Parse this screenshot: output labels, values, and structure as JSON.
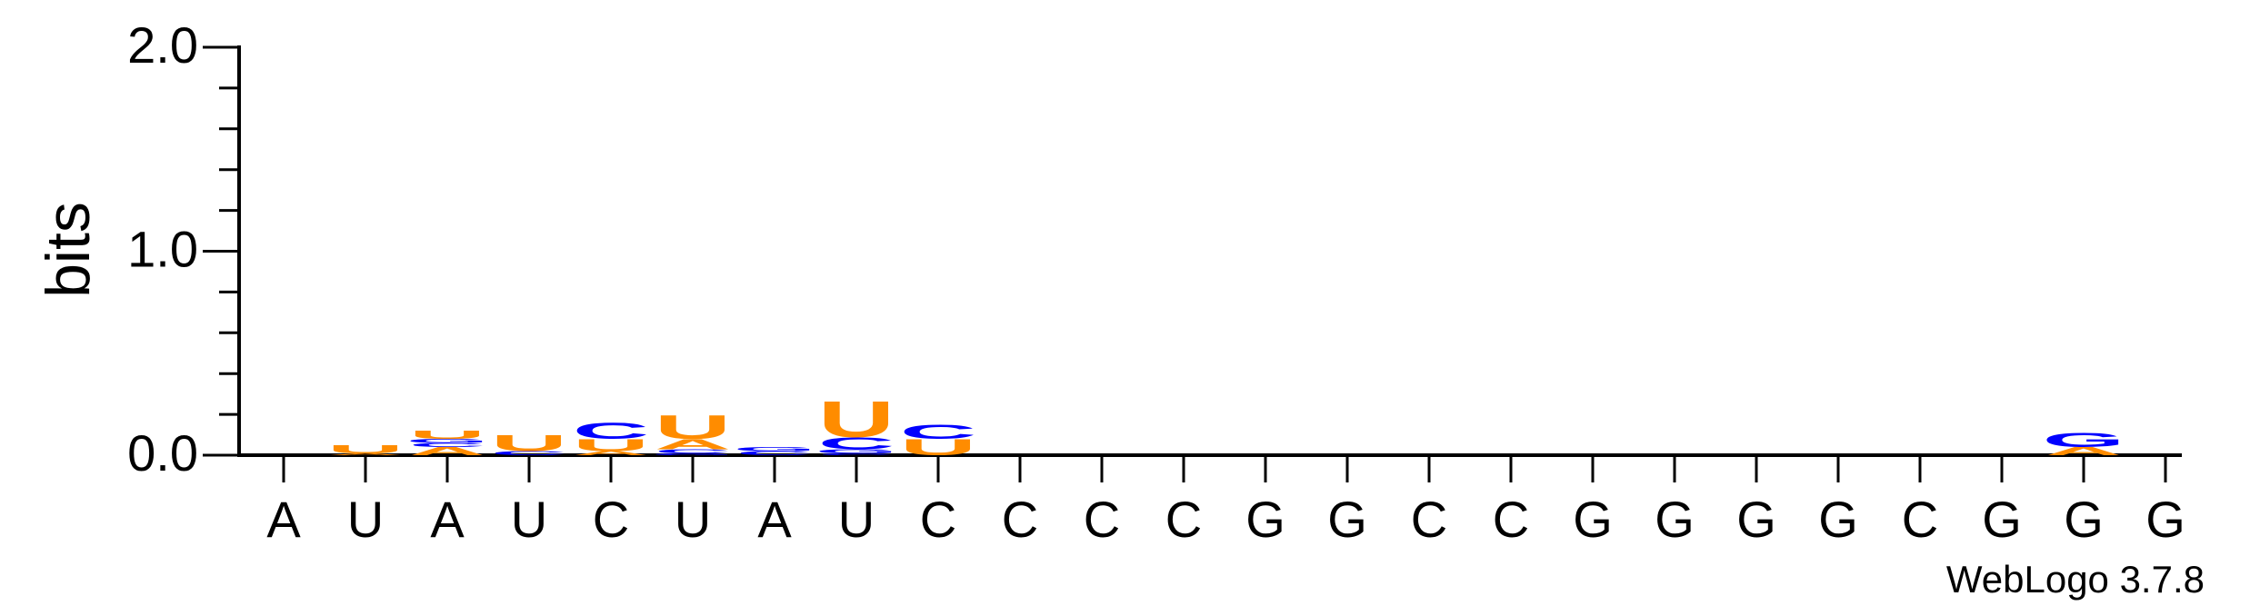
{
  "chart_data": {
    "type": "sequence-logo",
    "ylabel": "bits",
    "ylim": [
      0,
      2.0
    ],
    "yticks": [
      "0.0",
      "1.0",
      "2.0"
    ],
    "y_minor_step": 0.2,
    "positions": [
      "A",
      "U",
      "A",
      "U",
      "C",
      "U",
      "A",
      "U",
      "C",
      "C",
      "C",
      "C",
      "G",
      "G",
      "C",
      "C",
      "G",
      "G",
      "G",
      "G",
      "C",
      "G",
      "G",
      "G"
    ],
    "colors": {
      "A": "#ff8c00",
      "U": "#ff8c00",
      "C": "#0000ff",
      "G": "#0000ff"
    },
    "stacks": [
      [],
      [
        [
          "A",
          0.01
        ],
        [
          "U",
          0.04
        ]
      ],
      [
        [
          "A",
          0.04
        ],
        [
          "C",
          0.02
        ],
        [
          "G",
          0.02
        ],
        [
          "U",
          0.04
        ]
      ],
      [
        [
          "C",
          0.02
        ],
        [
          "U",
          0.08
        ]
      ],
      [
        [
          "A",
          0.02
        ],
        [
          "U",
          0.06
        ],
        [
          "C",
          0.08
        ]
      ],
      [
        [
          "G",
          0.01
        ],
        [
          "C",
          0.02
        ],
        [
          "A",
          0.05
        ],
        [
          "U",
          0.12
        ]
      ],
      [
        [
          "C",
          0.02
        ],
        [
          "G",
          0.02
        ]
      ],
      [
        [
          "C",
          0.01
        ],
        [
          "G",
          0.02
        ],
        [
          "C",
          0.06
        ],
        [
          "U",
          0.18
        ]
      ],
      [
        [
          "U",
          0.08
        ],
        [
          "C",
          0.07
        ]
      ],
      [],
      [],
      [],
      [],
      [],
      [],
      [],
      [],
      [],
      [],
      [],
      [],
      [],
      [
        [
          "A",
          0.04
        ],
        [
          "G",
          0.07
        ]
      ],
      []
    ]
  },
  "credit": "WebLogo 3.7.8"
}
